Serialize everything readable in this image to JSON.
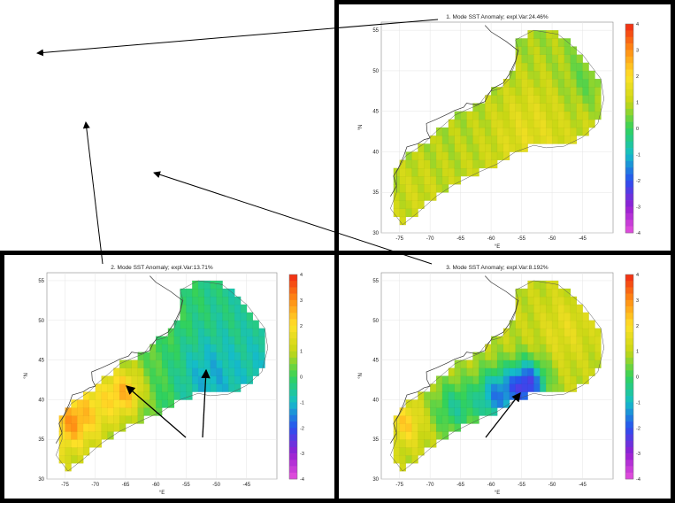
{
  "chart_data": [
    {
      "type": "heatmap",
      "title": "1. Mode SST Anomaly; expl.Var:24.46%",
      "xlabel": "°E",
      "ylabel": "°N",
      "xlim": [
        -78,
        -40
      ],
      "ylim": [
        30,
        56
      ],
      "x_ticks": [
        "-75",
        "-70",
        "-65",
        "-60",
        "-55",
        "-50",
        "-45"
      ],
      "y_ticks": [
        "30",
        "35",
        "40",
        "45",
        "50",
        "55"
      ],
      "colorbar": {
        "min": -4,
        "max": 4,
        "ticks": [
          "4",
          "3",
          "2",
          "1",
          "0",
          "-1",
          "-2",
          "-3",
          "-4"
        ]
      },
      "field": {
        "base": 0.9,
        "grad_x": 0.01,
        "grad_y": -0.02,
        "blobs": [
          {
            "lon": -54,
            "lat": 43,
            "amp": 0.5,
            "r": 6
          },
          {
            "lon": -44,
            "lat": 49,
            "amp": -0.6,
            "r": 4
          },
          {
            "lon": -73,
            "lat": 36,
            "amp": 0.2,
            "r": 4
          }
        ]
      }
    },
    {
      "type": "heatmap",
      "title": "2. Mode SST Anomaly; expl.Var:13.71%",
      "xlabel": "°E",
      "ylabel": "°N",
      "xlim": [
        -78,
        -40
      ],
      "ylim": [
        30,
        56
      ],
      "x_ticks": [
        "-75",
        "-70",
        "-65",
        "-60",
        "-55",
        "-50",
        "-45"
      ],
      "y_ticks": [
        "30",
        "35",
        "40",
        "45",
        "50",
        "55"
      ],
      "colorbar": {
        "min": -4,
        "max": 4,
        "ticks": [
          "4",
          "3",
          "2",
          "1",
          "0",
          "-1",
          "-2",
          "-3",
          "-4"
        ]
      },
      "field": {
        "base": 0.2,
        "grad_x": -0.06,
        "grad_y": 0.0,
        "blobs": [
          {
            "lon": -65,
            "lat": 41,
            "amp": 1.8,
            "r": 3
          },
          {
            "lon": -74,
            "lat": 37,
            "amp": 1.5,
            "r": 3
          },
          {
            "lon": -70,
            "lat": 39,
            "amp": 1.0,
            "r": 4
          },
          {
            "lon": -52,
            "lat": 43,
            "amp": -0.8,
            "r": 5
          },
          {
            "lon": -45,
            "lat": 50,
            "amp": 0.2,
            "r": 4
          }
        ]
      }
    },
    {
      "type": "heatmap",
      "title": "3. Mode SST Anomaly; expl.Var:8.192%",
      "xlabel": "°E",
      "ylabel": "°N",
      "xlim": [
        -78,
        -40
      ],
      "ylim": [
        30,
        56
      ],
      "x_ticks": [
        "-75",
        "-70",
        "-65",
        "-60",
        "-55",
        "-50",
        "-45"
      ],
      "y_ticks": [
        "30",
        "35",
        "40",
        "45",
        "50",
        "55"
      ],
      "colorbar": {
        "min": -4,
        "max": 4,
        "ticks": [
          "4",
          "3",
          "2",
          "1",
          "0",
          "-1",
          "-2",
          "-3",
          "-4"
        ]
      },
      "field": {
        "base": 1.0,
        "grad_x": 0.0,
        "grad_y": 0.0,
        "blobs": [
          {
            "lon": -54,
            "lat": 42,
            "amp": -3.2,
            "r": 3
          },
          {
            "lon": -59,
            "lat": 40.5,
            "amp": -2.4,
            "r": 3.5
          },
          {
            "lon": -66,
            "lat": 39,
            "amp": -1.4,
            "r": 3.5
          },
          {
            "lon": -74,
            "lat": 37,
            "amp": 1.2,
            "r": 2.5
          },
          {
            "lon": -48,
            "lat": 49,
            "amp": 0.5,
            "r": 4
          }
        ]
      }
    }
  ]
}
